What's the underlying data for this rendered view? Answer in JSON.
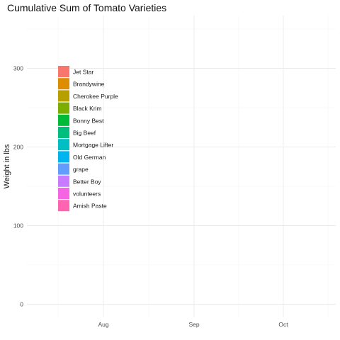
{
  "chart_data": {
    "type": "area",
    "title": "Cumulative Sum of Tomato Varieties",
    "xlabel": "",
    "ylabel": "Weight in lbs",
    "x_ticks": [
      "Aug",
      "Sep",
      "Oct"
    ],
    "y_ticks": [
      0,
      100,
      200,
      300
    ],
    "ylim": [
      -15,
      365
    ],
    "grid": true,
    "legend_position": "left-inside",
    "series": [
      {
        "name": "Jet Star",
        "color": "#F8766D"
      },
      {
        "name": "Brandywine",
        "color": "#DE8C00"
      },
      {
        "name": "Cherokee Purple",
        "color": "#B79F00"
      },
      {
        "name": "Black Krim",
        "color": "#7CAE00"
      },
      {
        "name": "Bonny Best",
        "color": "#00BA38"
      },
      {
        "name": "Big Beef",
        "color": "#00BF7D"
      },
      {
        "name": "Mortgage Lifter",
        "color": "#00BFC4"
      },
      {
        "name": "Old German",
        "color": "#00B4F0"
      },
      {
        "name": "grape",
        "color": "#619CFF"
      },
      {
        "name": "Better Boy",
        "color": "#C77CFF"
      },
      {
        "name": "volunteers",
        "color": "#F564E3"
      },
      {
        "name": "Amish Paste",
        "color": "#FF64B0"
      }
    ]
  }
}
